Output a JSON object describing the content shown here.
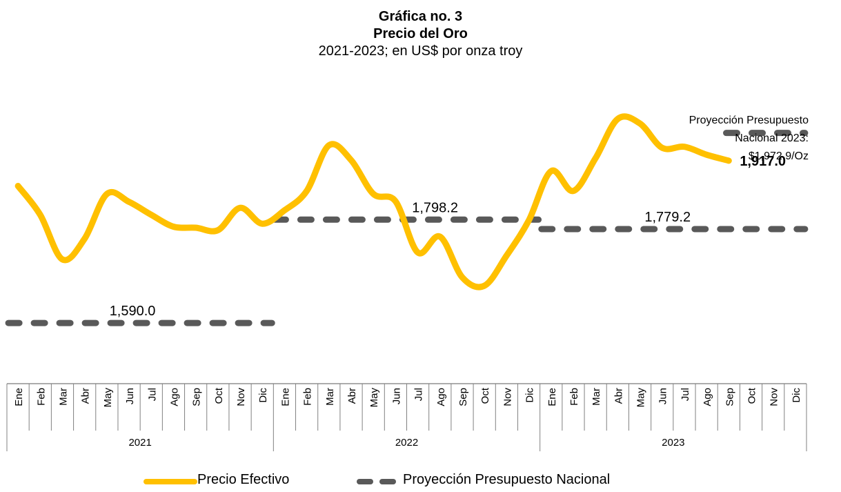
{
  "chart_data": {
    "type": "line",
    "title": "Gráfica no. 3",
    "title2": "Precio del Oro",
    "subtitle": "2021-2023; en US$ por onza troy",
    "years": [
      "2021",
      "2022",
      "2023"
    ],
    "months": [
      "Ene",
      "Feb",
      "Mar",
      "Abr",
      "May",
      "Jun",
      "Jul",
      "Ago",
      "Sep",
      "Oct",
      "Nov",
      "Dic"
    ],
    "ylim": [
      1490,
      2060
    ],
    "series": [
      {
        "name": "Precio Efectivo",
        "color": "#FFC000",
        "values": [
          1866,
          1808,
          1718,
          1760,
          1850,
          1834,
          1808,
          1784,
          1782,
          1777,
          1822,
          1790,
          1817,
          1856,
          1948,
          1918,
          1850,
          1835,
          1732,
          1764,
          1682,
          1665,
          1726,
          1797,
          1896,
          1856,
          1922,
          2001,
          1992,
          1943,
          1945,
          1929,
          1917,
          null,
          null,
          null
        ]
      },
      {
        "name": "Proyección Presupuesto Nacional",
        "color": "#595959",
        "values": [
          1590.0,
          1590.0,
          1590.0,
          1590.0,
          1590.0,
          1590.0,
          1590.0,
          1590.0,
          1590.0,
          1590.0,
          1590.0,
          1590.0,
          1798.2,
          1798.2,
          1798.2,
          1798.2,
          1798.2,
          1798.2,
          1798.2,
          1798.2,
          1798.2,
          1798.2,
          1798.2,
          1798.2,
          1779.2,
          1779.2,
          1779.2,
          1779.2,
          1779.2,
          1779.2,
          1779.2,
          1779.2,
          1779.2,
          1779.2,
          1779.2,
          1779.2
        ]
      }
    ],
    "projection_2023_line": {
      "value": 1972.9,
      "months": [
        "Oct",
        "Nov",
        "Dic"
      ]
    },
    "labels": {
      "proj2021": "1,590.0",
      "proj2022": "1,798.2",
      "proj2023": "1,779.2",
      "last_price": "1,917.0",
      "annotation": [
        "Proyección Presupuesto",
        "Nacional 2023:",
        "$1,972.9/Oz"
      ]
    },
    "legend": {
      "position": "bottom"
    }
  }
}
